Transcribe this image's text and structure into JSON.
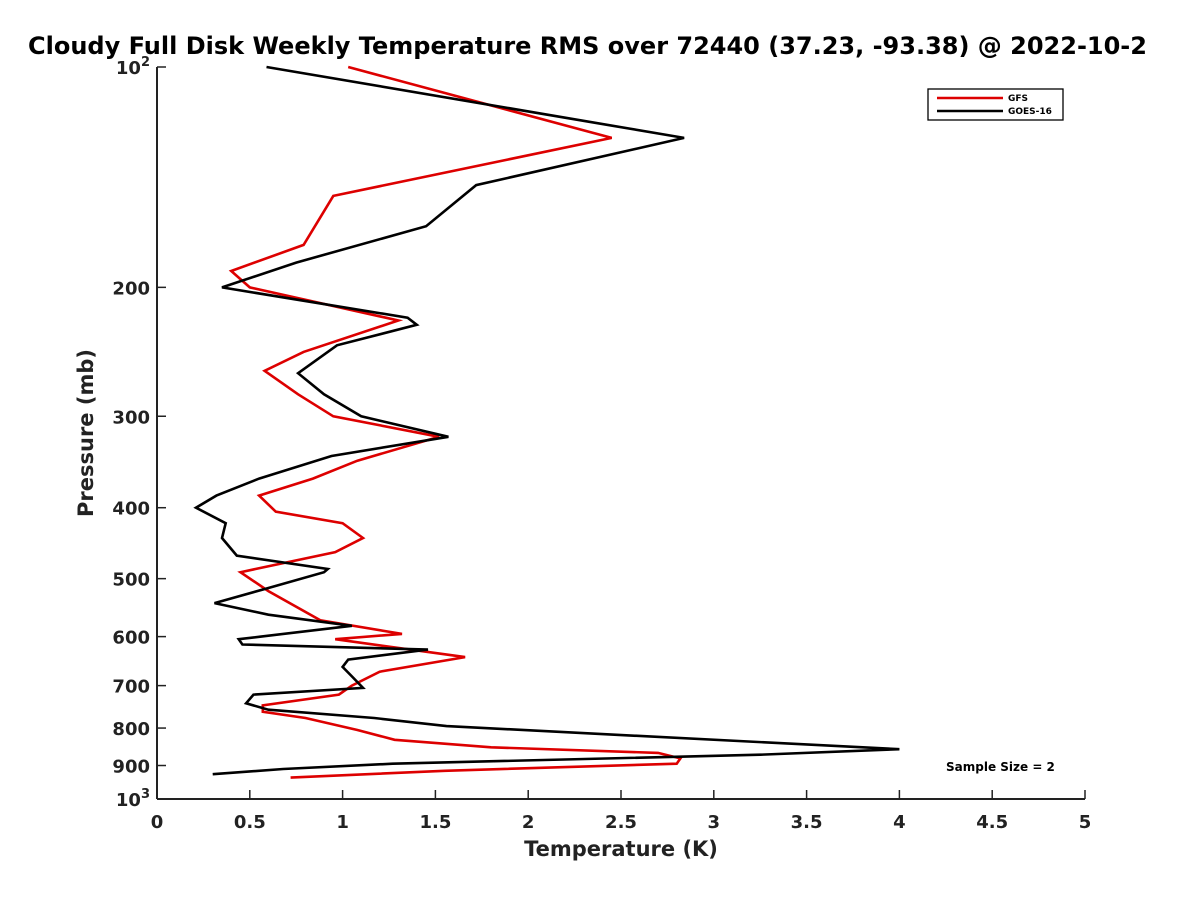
{
  "chart_data": {
    "type": "line",
    "title": "Cloudy Full Disk Weekly Temperature RMS over 72440 (37.23, -93.38) @ 2022-10-2",
    "xlabel": "Temperature (K)",
    "ylabel": "Pressure (mb)",
    "xlim": [
      0,
      5
    ],
    "ylim": [
      100,
      1000
    ],
    "y_scale": "log",
    "y_reversed": true,
    "x_ticks": [
      "0",
      "0.5",
      "1",
      "1.5",
      "2",
      "2.5",
      "3",
      "3.5",
      "4",
      "4.5",
      "5"
    ],
    "y_ticks": [
      {
        "value": 100,
        "base": "10",
        "exp": "2"
      },
      {
        "value": 200,
        "label": "200"
      },
      {
        "value": 300,
        "label": "300"
      },
      {
        "value": 400,
        "label": "400"
      },
      {
        "value": 500,
        "label": "500"
      },
      {
        "value": 600,
        "label": "600"
      },
      {
        "value": 700,
        "label": "700"
      },
      {
        "value": 800,
        "label": "800"
      },
      {
        "value": 900,
        "label": "900"
      },
      {
        "value": 1000,
        "base": "10",
        "exp": "3"
      }
    ],
    "grid": false,
    "legend_position": "top-right",
    "annotation": "Sample Size = 2",
    "series": [
      {
        "name": "GFS",
        "color": "#dd0000",
        "points": [
          [
            1.03,
            100
          ],
          [
            2.45,
            125
          ],
          [
            0.95,
            150
          ],
          [
            0.79,
            175
          ],
          [
            0.4,
            190
          ],
          [
            0.5,
            200
          ],
          [
            1.3,
            222
          ],
          [
            0.79,
            245
          ],
          [
            0.58,
            260
          ],
          [
            0.76,
            280
          ],
          [
            0.95,
            300
          ],
          [
            1.52,
            320
          ],
          [
            1.08,
            345
          ],
          [
            0.84,
            365
          ],
          [
            0.55,
            385
          ],
          [
            0.64,
            405
          ],
          [
            1.0,
            420
          ],
          [
            1.11,
            440
          ],
          [
            0.96,
            460
          ],
          [
            0.45,
            490
          ],
          [
            0.6,
            520
          ],
          [
            0.88,
            570
          ],
          [
            1.32,
            595
          ],
          [
            0.96,
            605
          ],
          [
            1.66,
            640
          ],
          [
            1.2,
            670
          ],
          [
            1.05,
            700
          ],
          [
            0.98,
            720
          ],
          [
            0.57,
            745
          ],
          [
            0.57,
            760
          ],
          [
            0.8,
            775
          ],
          [
            1.08,
            805
          ],
          [
            1.28,
            830
          ],
          [
            1.8,
            850
          ],
          [
            2.7,
            865
          ],
          [
            2.82,
            880
          ],
          [
            2.8,
            895
          ],
          [
            1.55,
            915
          ],
          [
            0.72,
            935
          ]
        ]
      },
      {
        "name": "GOES-16",
        "color": "#000000",
        "points": [
          [
            0.59,
            100
          ],
          [
            2.84,
            125
          ],
          [
            1.72,
            145
          ],
          [
            1.45,
            165
          ],
          [
            0.75,
            185
          ],
          [
            0.35,
            200
          ],
          [
            1.35,
            220
          ],
          [
            1.4,
            225
          ],
          [
            0.97,
            240
          ],
          [
            0.76,
            262
          ],
          [
            0.9,
            280
          ],
          [
            1.1,
            300
          ],
          [
            1.57,
            320
          ],
          [
            0.94,
            340
          ],
          [
            0.55,
            365
          ],
          [
            0.32,
            385
          ],
          [
            0.21,
            400
          ],
          [
            0.37,
            420
          ],
          [
            0.35,
            440
          ],
          [
            0.43,
            465
          ],
          [
            0.92,
            485
          ],
          [
            0.9,
            490
          ],
          [
            0.6,
            515
          ],
          [
            0.31,
            540
          ],
          [
            0.6,
            560
          ],
          [
            1.05,
            580
          ],
          [
            0.44,
            605
          ],
          [
            0.46,
            615
          ],
          [
            1.46,
            625
          ],
          [
            1.03,
            645
          ],
          [
            1.0,
            660
          ],
          [
            1.05,
            680
          ],
          [
            1.11,
            705
          ],
          [
            0.52,
            720
          ],
          [
            0.48,
            740
          ],
          [
            0.6,
            755
          ],
          [
            1.17,
            775
          ],
          [
            1.56,
            795
          ],
          [
            4.0,
            855
          ],
          [
            3.25,
            870
          ],
          [
            1.27,
            895
          ],
          [
            0.68,
            910
          ],
          [
            0.3,
            925
          ]
        ]
      }
    ]
  }
}
